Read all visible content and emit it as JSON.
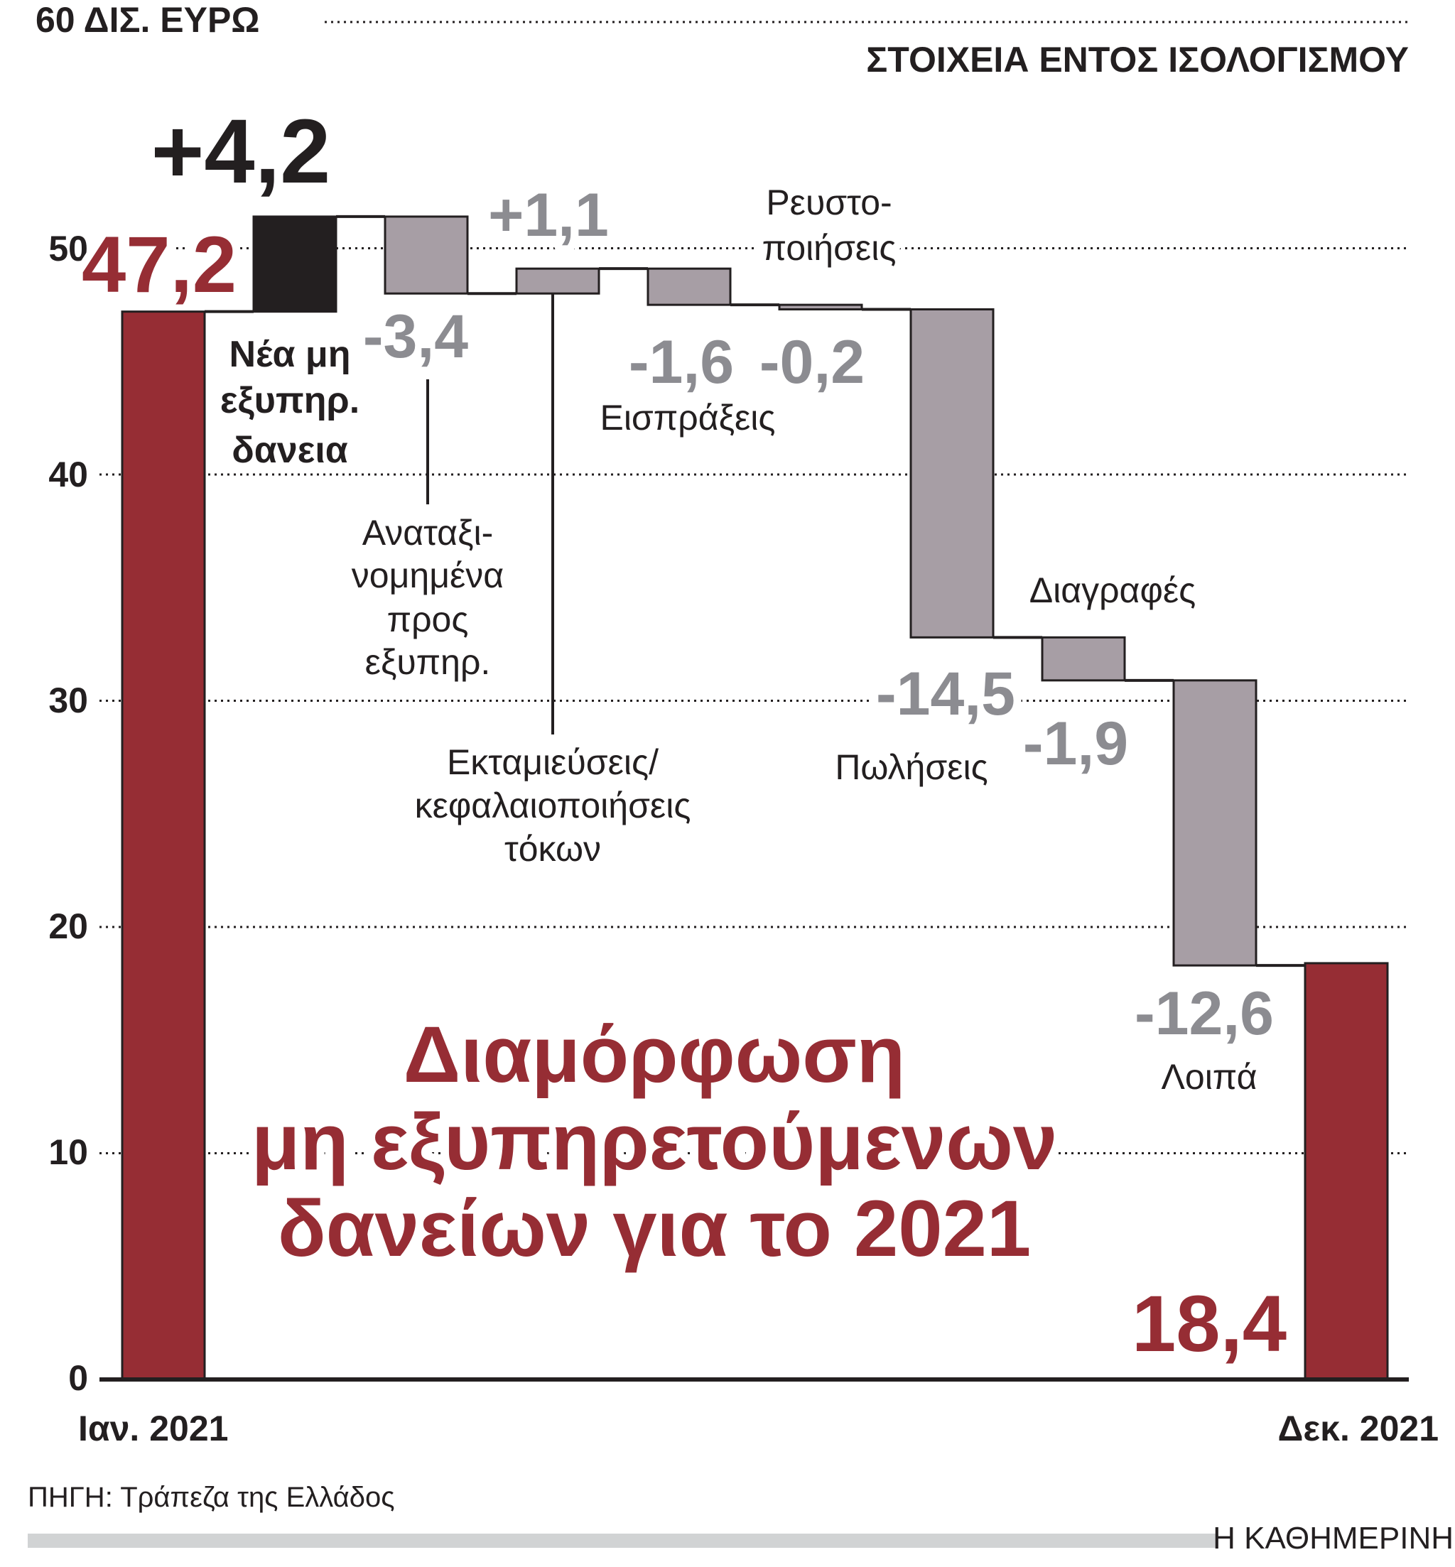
{
  "chart_data": {
    "type": "waterfall",
    "title": [
      "Διαμόρφωση",
      "μη εξυπηρετούμενων",
      "δανείων για το 2021"
    ],
    "unit_label": "60 ΔΙΣ. ΕΥΡΩ",
    "subtitle": "ΣΤΟΙΧΕΙΑ ΕΝΤΟΣ ΙΣΟΛΟΓΙΣΜΟΥ",
    "ylim": [
      0,
      60
    ],
    "yticks": [
      "0",
      "10",
      "20",
      "30",
      "40",
      "50"
    ],
    "grid": true,
    "start": {
      "label": "Ιαν. 2021",
      "value": 47.2,
      "value_label": "47,2"
    },
    "end": {
      "label": "Δεκ. 2021",
      "value": 18.4,
      "value_label": "18,4"
    },
    "steps": [
      {
        "label": [
          "Νέα μη",
          "εξυπηρ.",
          "δανεια"
        ],
        "value": 4.2,
        "value_label": "+4,2"
      },
      {
        "label": [
          "Αναταξι-",
          "νομημένα",
          "προς",
          "εξυπηρ."
        ],
        "value": -3.4,
        "value_label": "-3,4"
      },
      {
        "label": [
          "Εκταμιεύσεις/",
          "κεφαλαιοποιήσεις",
          "τόκων"
        ],
        "value": 1.1,
        "value_label": "+1,1"
      },
      {
        "label": [
          "Εισπράξεις"
        ],
        "value": -1.6,
        "value_label": "-1,6"
      },
      {
        "label": [
          "Ρευστο-",
          "ποιήσεις"
        ],
        "value": -0.2,
        "value_label": "-0,2"
      },
      {
        "label": [
          "Πωλήσεις"
        ],
        "value": -14.5,
        "value_label": "-14,5"
      },
      {
        "label": [
          "Διαγραφές"
        ],
        "value": -1.9,
        "value_label": "-1,9"
      },
      {
        "label": [
          "Λοιπά"
        ],
        "value": -12.6,
        "value_label": "-12,6"
      }
    ],
    "colors": {
      "total": "#962d34",
      "increase_new": "#231f20",
      "change": "#a79ea5",
      "delta_text": "#8c8c91"
    }
  },
  "footer": {
    "source": "ΠΗΓΗ: Τράπεζα της Ελλάδος",
    "brand": "Η ΚΑΘΗΜΕΡΙΝΗ"
  }
}
